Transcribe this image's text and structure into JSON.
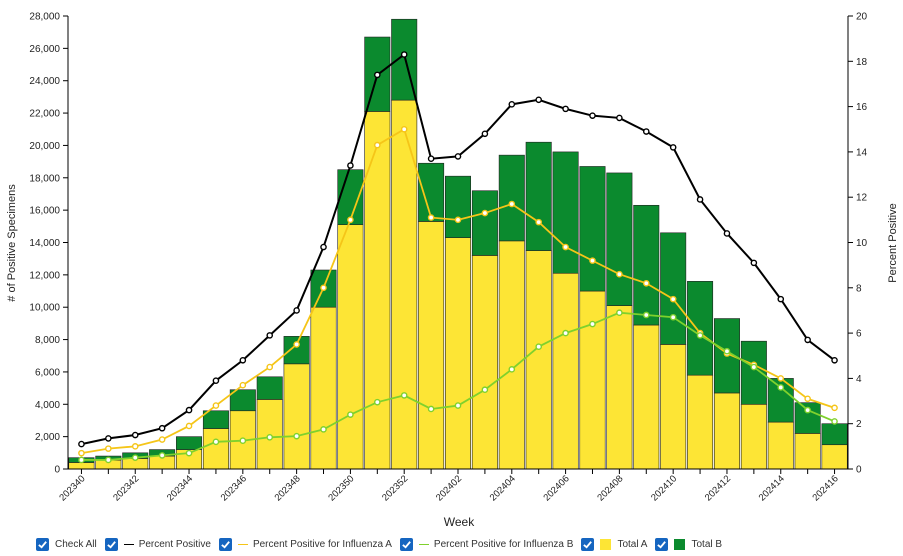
{
  "chart_data": {
    "type": "bar",
    "xlabel": "Week",
    "ylabel_left": "# of Positive Specimens",
    "ylabel_right": "Percent Positive",
    "ylim_left": [
      0,
      28000
    ],
    "ylim_right": [
      0,
      20
    ],
    "left_ticks": [
      "0",
      "2,000",
      "4,000",
      "6,000",
      "8,000",
      "10,000",
      "12,000",
      "14,000",
      "16,000",
      "18,000",
      "20,000",
      "22,000",
      "24,000",
      "26,000",
      "28,000"
    ],
    "right_ticks": [
      "0",
      "2",
      "4",
      "6",
      "8",
      "10",
      "12",
      "14",
      "16",
      "18",
      "20"
    ],
    "x_tick_labels": [
      "202340",
      "202342",
      "202344",
      "202346",
      "202348",
      "202350",
      "202352",
      "202402",
      "202404",
      "202406",
      "202408",
      "202410",
      "202412",
      "202414",
      "202416"
    ],
    "weeks": [
      "202340",
      "202341",
      "202342",
      "202343",
      "202344",
      "202345",
      "202346",
      "202347",
      "202348",
      "202349",
      "202350",
      "202351",
      "202352",
      "202401",
      "202402",
      "202403",
      "202404",
      "202405",
      "202406",
      "202407",
      "202408",
      "202409",
      "202410",
      "202411",
      "202412",
      "202413",
      "202414",
      "202415",
      "202416"
    ],
    "stacked_series": [
      {
        "name": "Total A",
        "color": "#fde535",
        "values": [
          400,
          550,
          650,
          800,
          1200,
          2500,
          3600,
          4300,
          6500,
          10000,
          15100,
          22100,
          22800,
          15300,
          14300,
          13200,
          14100,
          13500,
          12100,
          11000,
          10100,
          8900,
          7700,
          5800,
          4700,
          4000,
          2900,
          2200,
          1500
        ]
      },
      {
        "name": "Total B",
        "color": "#0b8a2e",
        "values": [
          300,
          250,
          350,
          400,
          800,
          1100,
          1300,
          1400,
          1700,
          2300,
          3400,
          4600,
          5000,
          3600,
          3800,
          4000,
          5300,
          6700,
          7500,
          7700,
          8200,
          7400,
          6900,
          5800,
          4600,
          3900,
          2700,
          1900,
          1300
        ]
      }
    ],
    "line_series": [
      {
        "name": "Percent Positive",
        "color": "#000000",
        "values": [
          1.1,
          1.35,
          1.5,
          1.8,
          2.6,
          3.9,
          4.8,
          5.9,
          7.0,
          9.8,
          13.4,
          17.4,
          18.3,
          13.7,
          13.8,
          14.8,
          16.1,
          16.3,
          15.9,
          15.6,
          15.5,
          14.9,
          14.2,
          11.9,
          10.4,
          9.1,
          7.5,
          5.7,
          4.8
        ]
      },
      {
        "name": "Percent Positive for Influenza A",
        "color": "#f5c518",
        "values": [
          0.7,
          0.9,
          1.0,
          1.3,
          1.9,
          2.8,
          3.7,
          4.5,
          5.5,
          8.0,
          11.0,
          14.3,
          15.0,
          11.1,
          11.0,
          11.3,
          11.7,
          10.9,
          9.8,
          9.2,
          8.6,
          8.2,
          7.5,
          6.0,
          5.1,
          4.6,
          4.0,
          3.1,
          2.7
        ]
      },
      {
        "name": "Percent Positive for Influenza B",
        "color": "#7fd12d",
        "values": [
          0.4,
          0.4,
          0.5,
          0.6,
          0.7,
          1.2,
          1.25,
          1.4,
          1.45,
          1.75,
          2.4,
          2.95,
          3.25,
          2.65,
          2.8,
          3.5,
          4.4,
          5.4,
          6.0,
          6.4,
          6.9,
          6.8,
          6.7,
          5.9,
          5.2,
          4.5,
          3.6,
          2.6,
          2.1
        ]
      }
    ]
  },
  "legend": {
    "check_all": "Check All",
    "percent_positive": "Percent Positive",
    "percent_positive_a": "Percent Positive for Influenza A",
    "percent_positive_b": "Percent Positive for Influenza B",
    "total_a": "Total A",
    "total_b": "Total B"
  },
  "colors": {
    "checkbox": "#1565c0",
    "total_a": "#fde535",
    "total_b": "#0b8a2e",
    "percent_positive": "#000000",
    "percent_positive_a": "#f5c518",
    "percent_positive_b": "#7fd12d"
  }
}
